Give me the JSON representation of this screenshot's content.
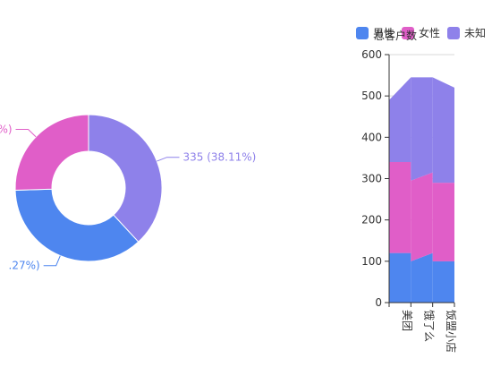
{
  "colors": {
    "male": "#4e86ef",
    "female": "#e05ec8",
    "unknown": "#8e81ea",
    "axis": "#333333",
    "grid": "#d9d9d9"
  },
  "legend": [
    {
      "label": "男性",
      "color_key": "male"
    },
    {
      "label": "女性",
      "color_key": "female"
    },
    {
      "label": "未知",
      "color_key": "unknown"
    }
  ],
  "bar_title": "总客户数",
  "chart_data": [
    {
      "type": "pie",
      "variant": "donut",
      "labels_visible": [
        "335 (38.11%)",
        "…%)",
        "….27%)"
      ],
      "slices": [
        {
          "series": "未知",
          "value": 335,
          "percent": 38.11,
          "label": "335 (38.11%)"
        },
        {
          "series": "男性",
          "value": 320,
          "percent": 36.27,
          "label": ".27%)"
        },
        {
          "series": "女性",
          "value": 224,
          "percent": 25.62,
          "label": "%)"
        }
      ]
    },
    {
      "type": "bar",
      "stacked": true,
      "categories": [
        "美团",
        "饿了么",
        "饭盟小店"
      ],
      "ylim": [
        0,
        600
      ],
      "yticks": [
        0,
        100,
        200,
        300,
        400,
        500,
        600
      ],
      "grid": true,
      "series": [
        {
          "name": "男性",
          "color_key": "male",
          "values": [
            [
              120,
              120
            ],
            [
              100,
              120
            ],
            [
              100,
              100
            ]
          ]
        },
        {
          "name": "女性",
          "color_key": "female",
          "values": [
            [
              220,
              220
            ],
            [
              195,
              195
            ],
            [
              190,
              190
            ]
          ]
        },
        {
          "name": "未知",
          "color_key": "unknown",
          "values": [
            [
              150,
              205
            ],
            [
              250,
              230
            ],
            [
              255,
              230
            ]
          ]
        }
      ],
      "totals": [
        [
          490,
          545
        ],
        [
          545,
          545
        ],
        [
          545,
          520
        ]
      ]
    }
  ]
}
